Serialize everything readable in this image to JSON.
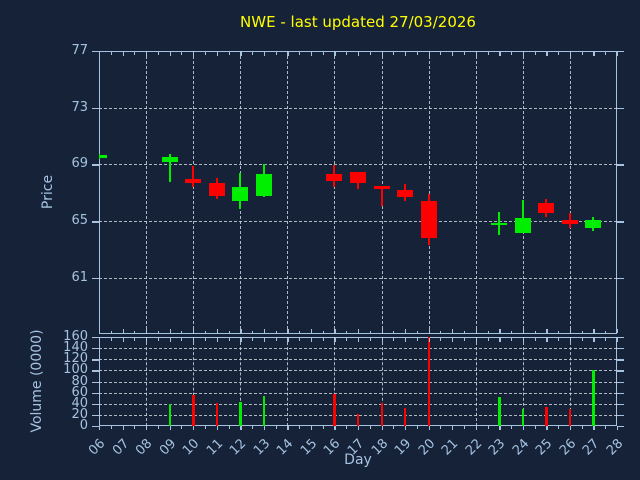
{
  "title": {
    "text": "NWE - last updated 27/03/2026"
  },
  "colors": {
    "background": "#152238",
    "axis": "#a5c3e1",
    "grid": "#ccd4dc",
    "up": "#00ef00",
    "down": "#fe0000",
    "title": "#ffff00"
  },
  "chart_data": [
    {
      "type": "candlestick",
      "title": "NWE - last updated 27/03/2026",
      "xlabel": "Day",
      "ylabel": "Price",
      "x_tick_labels": [
        "06",
        "07",
        "08",
        "09",
        "10",
        "11",
        "12",
        "13",
        "14",
        "15",
        "16",
        "17",
        "18",
        "19",
        "20",
        "21",
        "22",
        "23",
        "24",
        "25",
        "26",
        "27",
        "28"
      ],
      "x_day_range": [
        6,
        28
      ],
      "y_ticks": [
        61,
        65,
        69,
        73,
        77
      ],
      "y_gridlines": [
        61,
        65,
        69,
        73
      ],
      "x_gridline_days": [
        8,
        10,
        12,
        14,
        16,
        18,
        20,
        22,
        24,
        26
      ],
      "ylim": [
        57.05,
        77.0
      ],
      "grid_style": "dashed",
      "legend": "none",
      "candles": [
        {
          "day": 6,
          "label": "06",
          "open": 69.45,
          "high": 69.75,
          "low": 69.4,
          "close": 69.7,
          "direction": "up"
        },
        {
          "day": 9,
          "label": "09",
          "open": 69.2,
          "high": 69.75,
          "low": 67.75,
          "close": 69.5,
          "direction": "up"
        },
        {
          "day": 10,
          "label": "10",
          "open": 68.0,
          "high": 68.9,
          "low": 67.4,
          "close": 67.7,
          "direction": "down"
        },
        {
          "day": 11,
          "label": "11",
          "open": 67.7,
          "high": 68.05,
          "low": 66.6,
          "close": 66.8,
          "direction": "down"
        },
        {
          "day": 12,
          "label": "12",
          "open": 66.4,
          "high": 68.4,
          "low": 65.85,
          "close": 67.4,
          "direction": "up"
        },
        {
          "day": 13,
          "label": "13",
          "open": 66.8,
          "high": 69.05,
          "low": 66.7,
          "close": 68.35,
          "direction": "up"
        },
        {
          "day": 16,
          "label": "16",
          "open": 68.3,
          "high": 68.95,
          "low": 67.4,
          "close": 67.8,
          "direction": "down"
        },
        {
          "day": 17,
          "label": "17",
          "open": 68.45,
          "high": 68.5,
          "low": 67.25,
          "close": 67.7,
          "direction": "down"
        },
        {
          "day": 18,
          "label": "18",
          "open": 67.45,
          "high": 67.5,
          "low": 66.1,
          "close": 67.3,
          "direction": "down"
        },
        {
          "day": 19,
          "label": "19",
          "open": 67.2,
          "high": 67.65,
          "low": 66.4,
          "close": 66.7,
          "direction": "down"
        },
        {
          "day": 20,
          "label": "20",
          "open": 66.4,
          "high": 66.9,
          "low": 63.3,
          "close": 63.85,
          "direction": "down"
        },
        {
          "day": 23,
          "label": "23",
          "open": 64.8,
          "high": 65.65,
          "low": 64.05,
          "close": 64.9,
          "direction": "up"
        },
        {
          "day": 24,
          "label": "24",
          "open": 64.2,
          "high": 66.5,
          "low": 64.15,
          "close": 65.2,
          "direction": "up"
        },
        {
          "day": 25,
          "label": "25",
          "open": 66.25,
          "high": 66.6,
          "low": 65.3,
          "close": 65.6,
          "direction": "down"
        },
        {
          "day": 26,
          "label": "26",
          "open": 65.1,
          "high": 65.6,
          "low": 64.5,
          "close": 64.8,
          "direction": "down"
        },
        {
          "day": 27,
          "label": "27",
          "open": 64.55,
          "high": 65.3,
          "low": 64.3,
          "close": 65.1,
          "direction": "up"
        }
      ]
    },
    {
      "type": "bar",
      "ylabel": "Volume (0000)",
      "y_ticks": [
        0,
        20,
        40,
        60,
        80,
        100,
        120,
        140,
        160
      ],
      "y_gridlines": [
        20,
        40,
        60,
        80,
        100,
        120,
        140
      ],
      "ylim": [
        0,
        160
      ],
      "grid_style": "dashed",
      "bars": [
        {
          "day": 6,
          "label": "06",
          "value": 0,
          "direction": "up"
        },
        {
          "day": 9,
          "label": "09",
          "value": 40,
          "direction": "up"
        },
        {
          "day": 10,
          "label": "10",
          "value": 55,
          "direction": "down"
        },
        {
          "day": 11,
          "label": "11",
          "value": 41,
          "direction": "down"
        },
        {
          "day": 12,
          "label": "12",
          "value": 43,
          "direction": "up"
        },
        {
          "day": 13,
          "label": "13",
          "value": 54,
          "direction": "up"
        },
        {
          "day": 16,
          "label": "16",
          "value": 58,
          "direction": "down"
        },
        {
          "day": 17,
          "label": "17",
          "value": 22,
          "direction": "down"
        },
        {
          "day": 18,
          "label": "18",
          "value": 41,
          "direction": "down"
        },
        {
          "day": 19,
          "label": "19",
          "value": 33,
          "direction": "down"
        },
        {
          "day": 20,
          "label": "20",
          "value": 160,
          "direction": "down"
        },
        {
          "day": 23,
          "label": "23",
          "value": 52,
          "direction": "up"
        },
        {
          "day": 24,
          "label": "24",
          "value": 30,
          "direction": "up"
        },
        {
          "day": 25,
          "label": "25",
          "value": 35,
          "direction": "down"
        },
        {
          "day": 26,
          "label": "26",
          "value": 30,
          "direction": "down"
        },
        {
          "day": 27,
          "label": "27",
          "value": 100,
          "direction": "up"
        }
      ]
    }
  ]
}
